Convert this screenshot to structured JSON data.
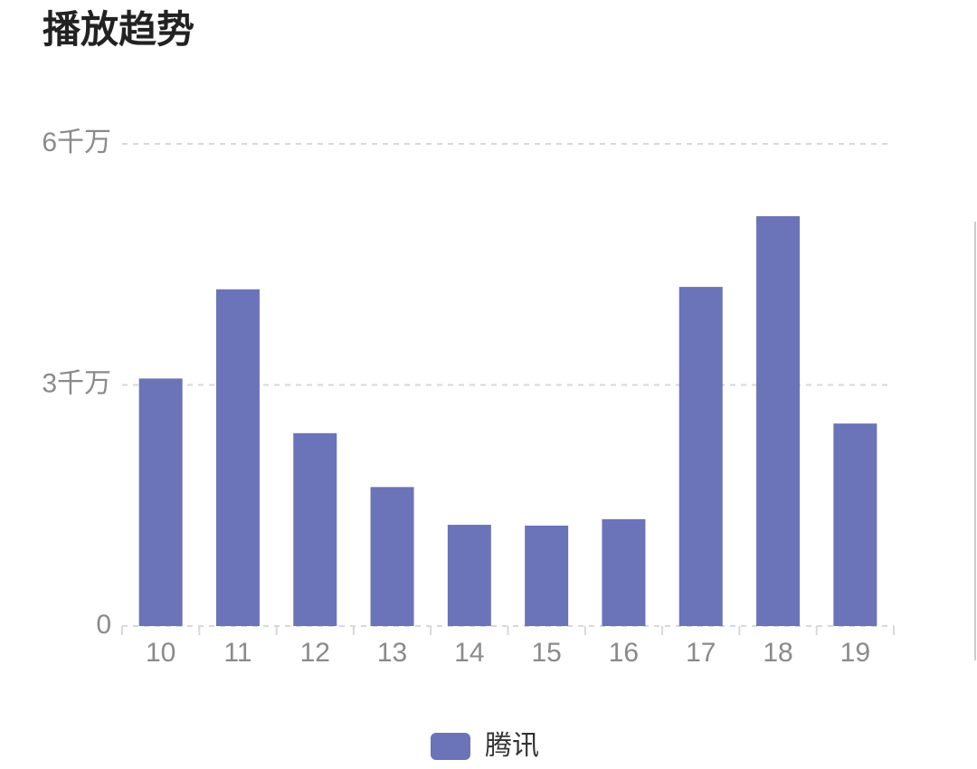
{
  "chart_data": {
    "type": "bar",
    "title": "播放趋势",
    "categories": [
      "10",
      "11",
      "12",
      "13",
      "14",
      "15",
      "16",
      "17",
      "18",
      "19"
    ],
    "series": [
      {
        "name": "腾讯",
        "color": "#6b73b9",
        "values": [
          30800000,
          41900000,
          24000000,
          17300000,
          12600000,
          12500000,
          13300000,
          42200000,
          51000000,
          25200000
        ]
      }
    ],
    "ylim": [
      0,
      60000000
    ],
    "yticks": [
      0,
      {
        "value": 30000000,
        "label": "3千万"
      },
      {
        "value": 60000000,
        "label": "6千万"
      }
    ],
    "grid": true,
    "legend": "bottom"
  }
}
